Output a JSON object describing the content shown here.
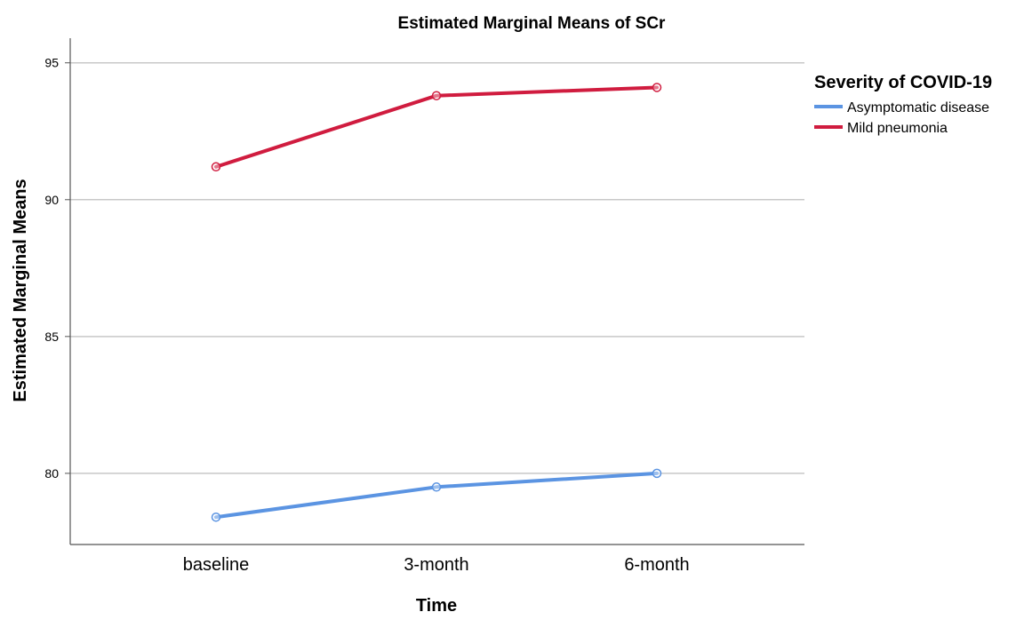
{
  "chart_data": {
    "type": "line",
    "title": "Estimated Marginal Means of SCr",
    "xlabel": "Time",
    "ylabel": "Estimated Marginal Means",
    "categories": [
      "baseline",
      "3-month",
      "6-month"
    ],
    "yticks": [
      80,
      85,
      90,
      95
    ],
    "ylim": [
      77.4,
      95.9
    ],
    "grid": true,
    "legend": {
      "title": "Severity of COVID-19",
      "placement": "top-right, outside plot"
    },
    "series": [
      {
        "name": "Asymptomatic disease",
        "color": "#5B94E2",
        "values": [
          78.4,
          79.5,
          80.0
        ]
      },
      {
        "name": "Mild pneumonia",
        "color": "#D01C3F",
        "values": [
          91.2,
          93.8,
          94.1
        ]
      }
    ]
  }
}
